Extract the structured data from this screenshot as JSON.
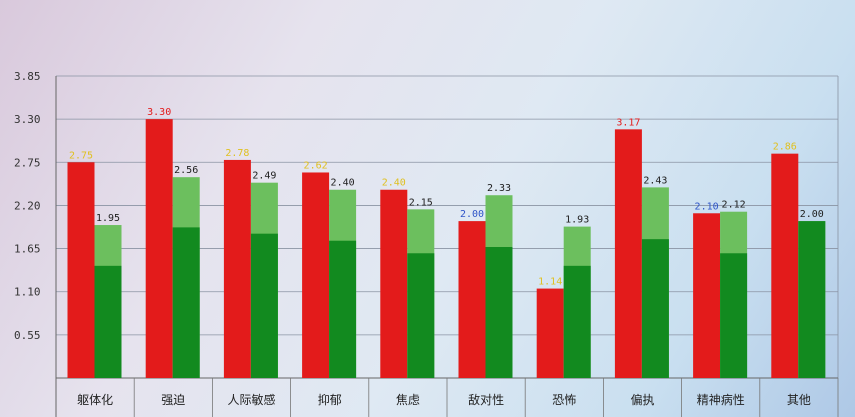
{
  "chart_data": {
    "type": "bar",
    "categories": [
      "躯体化",
      "强迫",
      "人际敏感",
      "抑郁",
      "焦虑",
      "敌对性",
      "恐怖",
      "偏执",
      "精神病性",
      "其他"
    ],
    "series": [
      {
        "values": [
          2.75,
          3.3,
          2.78,
          2.62,
          2.4,
          2.0,
          1.14,
          3.17,
          2.1,
          2.86
        ],
        "labels": [
          "2.75",
          "3.30",
          "2.78",
          "2.62",
          "2.40",
          "2.00",
          "1.14",
          "3.17",
          "2.10",
          "2.86"
        ],
        "color": "#e31b1b",
        "label_colors": [
          "#e0c020",
          "#e31b1b",
          "#e0c020",
          "#e0c020",
          "#e0c020",
          "#2f55c8",
          "#e0c020",
          "#e31b1b",
          "#2f55c8",
          "#e0c020"
        ]
      },
      {
        "values": [
          1.95,
          2.56,
          2.49,
          2.4,
          2.15,
          2.33,
          1.93,
          2.43,
          2.12,
          2.0
        ],
        "labels": [
          "1.95",
          "2.56",
          "2.49",
          "2.40",
          "2.15",
          "2.33",
          "1.93",
          "2.43",
          "2.12",
          "2.00"
        ],
        "color": "#6cbf5e",
        "dark_color": "#128a1f",
        "dark_values": [
          1.43,
          1.92,
          1.84,
          1.75,
          1.59,
          1.67,
          1.43,
          1.77,
          1.59,
          2.0
        ],
        "label_color": "#1e1e1e"
      }
    ],
    "yticks": [
      "0.55",
      "1.10",
      "1.65",
      "2.20",
      "2.75",
      "3.30",
      "3.85"
    ],
    "ylim": [
      0,
      3.85
    ],
    "grid": true,
    "title": "",
    "xlabel": "",
    "ylabel": ""
  }
}
